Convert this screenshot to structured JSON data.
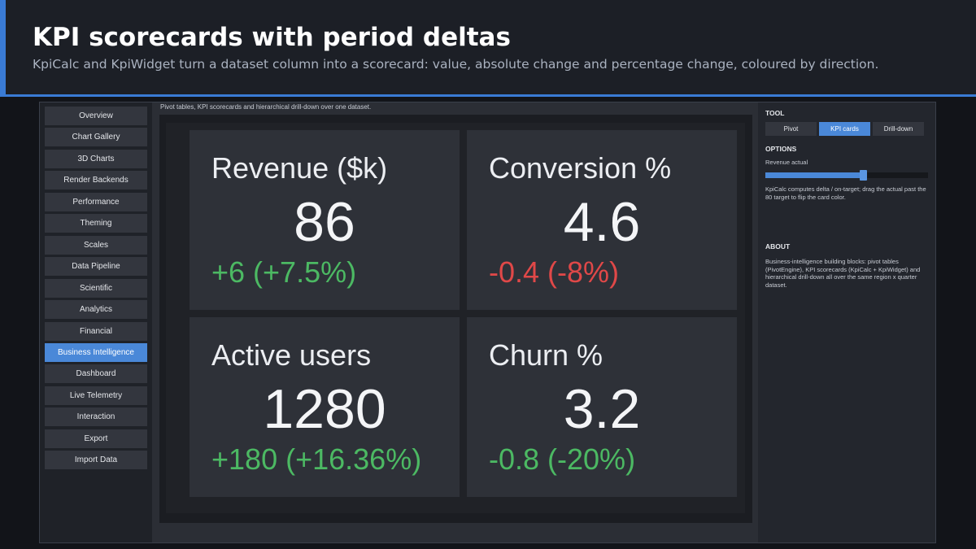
{
  "slide": {
    "title": "KPI scorecards with period deltas",
    "subtitle": "KpiCalc and KpiWidget turn a dataset column into a scorecard: value, absolute change and percentage change, coloured by direction."
  },
  "nav": {
    "items": [
      {
        "label": "Overview"
      },
      {
        "label": "Chart Gallery"
      },
      {
        "label": "3D Charts"
      },
      {
        "label": "Render Backends"
      },
      {
        "label": "Performance"
      },
      {
        "label": "Theming"
      },
      {
        "label": "Scales"
      },
      {
        "label": "Data Pipeline"
      },
      {
        "label": "Scientific"
      },
      {
        "label": "Analytics"
      },
      {
        "label": "Financial"
      },
      {
        "label": "Business Intelligence"
      },
      {
        "label": "Dashboard"
      },
      {
        "label": "Live Telemetry"
      },
      {
        "label": "Interaction"
      },
      {
        "label": "Export"
      },
      {
        "label": "Import Data"
      }
    ],
    "active_index": 11,
    "active_color": "#4a88d8"
  },
  "main": {
    "caption": "Pivot tables, KPI scorecards and hierarchical drill-down over one dataset."
  },
  "kpis": [
    {
      "label": "Revenue ($k)",
      "value": "86",
      "delta": "+6 (+7.5%)",
      "direction": "up"
    },
    {
      "label": "Conversion %",
      "value": "4.6",
      "delta": "-0.4 (-8%)",
      "direction": "down"
    },
    {
      "label": "Active users",
      "value": "1280",
      "delta": "+180 (+16.36%)",
      "direction": "up"
    },
    {
      "label": "Churn %",
      "value": "3.2",
      "delta": "-0.8 (-20%)",
      "direction": "up"
    }
  ],
  "colors": {
    "good": "#4cb963",
    "bad": "#e04848",
    "accent": "#4a88d8"
  },
  "panel": {
    "tool_heading": "TOOL",
    "tools": [
      {
        "label": "Pivot"
      },
      {
        "label": "KPI cards"
      },
      {
        "label": "Drill-down"
      }
    ],
    "active_tool": 1,
    "options_heading": "OPTIONS",
    "slider_label": "Revenue actual",
    "slider_fraction": 0.6,
    "hint": "KpiCalc computes delta / on-target; drag the actual past the 80 target to flip the card color.",
    "about_heading": "ABOUT",
    "about_text": "Business-intelligence building blocks: pivot tables (PivotEngine), KPI scorecards (KpiCalc + KpiWidget) and hierarchical drill-down  all over the same region x quarter dataset."
  }
}
